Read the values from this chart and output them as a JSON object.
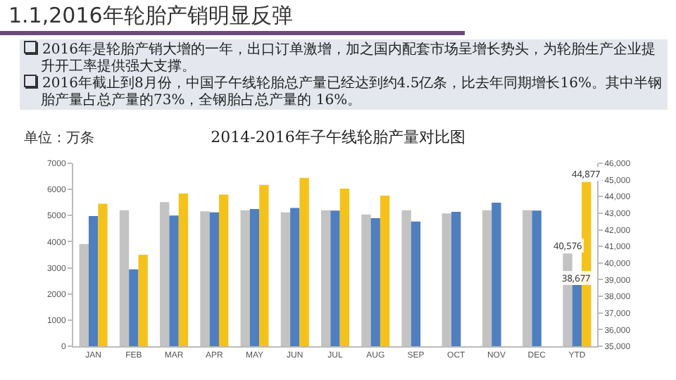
{
  "chart_data": {
    "type": "bar",
    "title": "1.1,2016年轮胎产销明显反弹",
    "subtitle": "2014-2016年子午线轮胎产量对比图",
    "ylabel": "单位：万条",
    "annotations": [
      "2016年是轮胎产销大增的一年，出口订单激增，加之国内配套市场呈增长势头，为轮胎生产企业提升开工率提供强大支撑。",
      "2016年截止到8月份，中国子午线轮胎总产量已经达到约4.5亿条，比去年同期增长16%。其中半钢胎产量占总产量的73%，全钢胎占总产量的 16%。"
    ],
    "categories": [
      "JAN",
      "FEB",
      "MAR",
      "APR",
      "MAY",
      "JUN",
      "JUL",
      "AUG",
      "SEP",
      "OCT",
      "NOV",
      "DEC",
      "YTD"
    ],
    "series": [
      {
        "color": "#c3c3c3",
        "values": [
          3910,
          5200,
          5510,
          5160,
          5200,
          5120,
          5200,
          5040,
          5200,
          5080,
          5200,
          5200,
          null
        ]
      },
      {
        "color": "#4f7fbf",
        "values": [
          4980,
          2940,
          5000,
          5120,
          5250,
          5290,
          5190,
          4900,
          4770,
          5140,
          5490,
          5190,
          null
        ]
      },
      {
        "color": "#f5c21b",
        "values": [
          5450,
          3500,
          5840,
          5800,
          6170,
          6440,
          6030,
          5760,
          null,
          null,
          null,
          null,
          null
        ]
      },
      {
        "color": "#c3c3c3",
        "axis": "y2",
        "values": [
          null,
          null,
          null,
          null,
          null,
          null,
          null,
          null,
          null,
          null,
          null,
          null,
          40576
        ],
        "value_labels": [
          null,
          null,
          null,
          null,
          null,
          null,
          null,
          null,
          null,
          null,
          null,
          null,
          "40,576"
        ]
      },
      {
        "color": "#4f7fbf",
        "axis": "y2",
        "values": [
          null,
          null,
          null,
          null,
          null,
          null,
          null,
          null,
          null,
          null,
          null,
          null,
          38677
        ],
        "value_labels": [
          null,
          null,
          null,
          null,
          null,
          null,
          null,
          null,
          null,
          null,
          null,
          null,
          "38,677"
        ]
      },
      {
        "color": "#f5c21b",
        "axis": "y2",
        "values": [
          null,
          null,
          null,
          null,
          null,
          null,
          null,
          null,
          null,
          null,
          null,
          null,
          44877
        ],
        "value_labels": [
          null,
          null,
          null,
          null,
          null,
          null,
          null,
          null,
          null,
          null,
          null,
          null,
          "44,877"
        ]
      }
    ],
    "ylim": [
      0,
      7000
    ],
    "yticks": [
      0,
      1000,
      2000,
      3000,
      4000,
      5000,
      6000,
      7000
    ],
    "y2lim": [
      35000,
      46000
    ],
    "y2ticks": [
      {
        "value": 35000,
        "label": "35,000"
      },
      {
        "value": 36000,
        "label": "36,000"
      },
      {
        "value": 37000,
        "label": "37,000"
      },
      {
        "value": 38000,
        "label": "38,000"
      },
      {
        "value": 39000,
        "label": "39,000"
      },
      {
        "value": 40000,
        "label": "40,000"
      },
      {
        "value": 41000,
        "label": "41,000"
      },
      {
        "value": 42000,
        "label": "42,000"
      },
      {
        "value": 43000,
        "label": "43,000"
      },
      {
        "value": 44000,
        "label": "44,000"
      },
      {
        "value": 45000,
        "label": "45,000"
      },
      {
        "value": 46000,
        "label": "46,000"
      }
    ],
    "grid": false
  }
}
